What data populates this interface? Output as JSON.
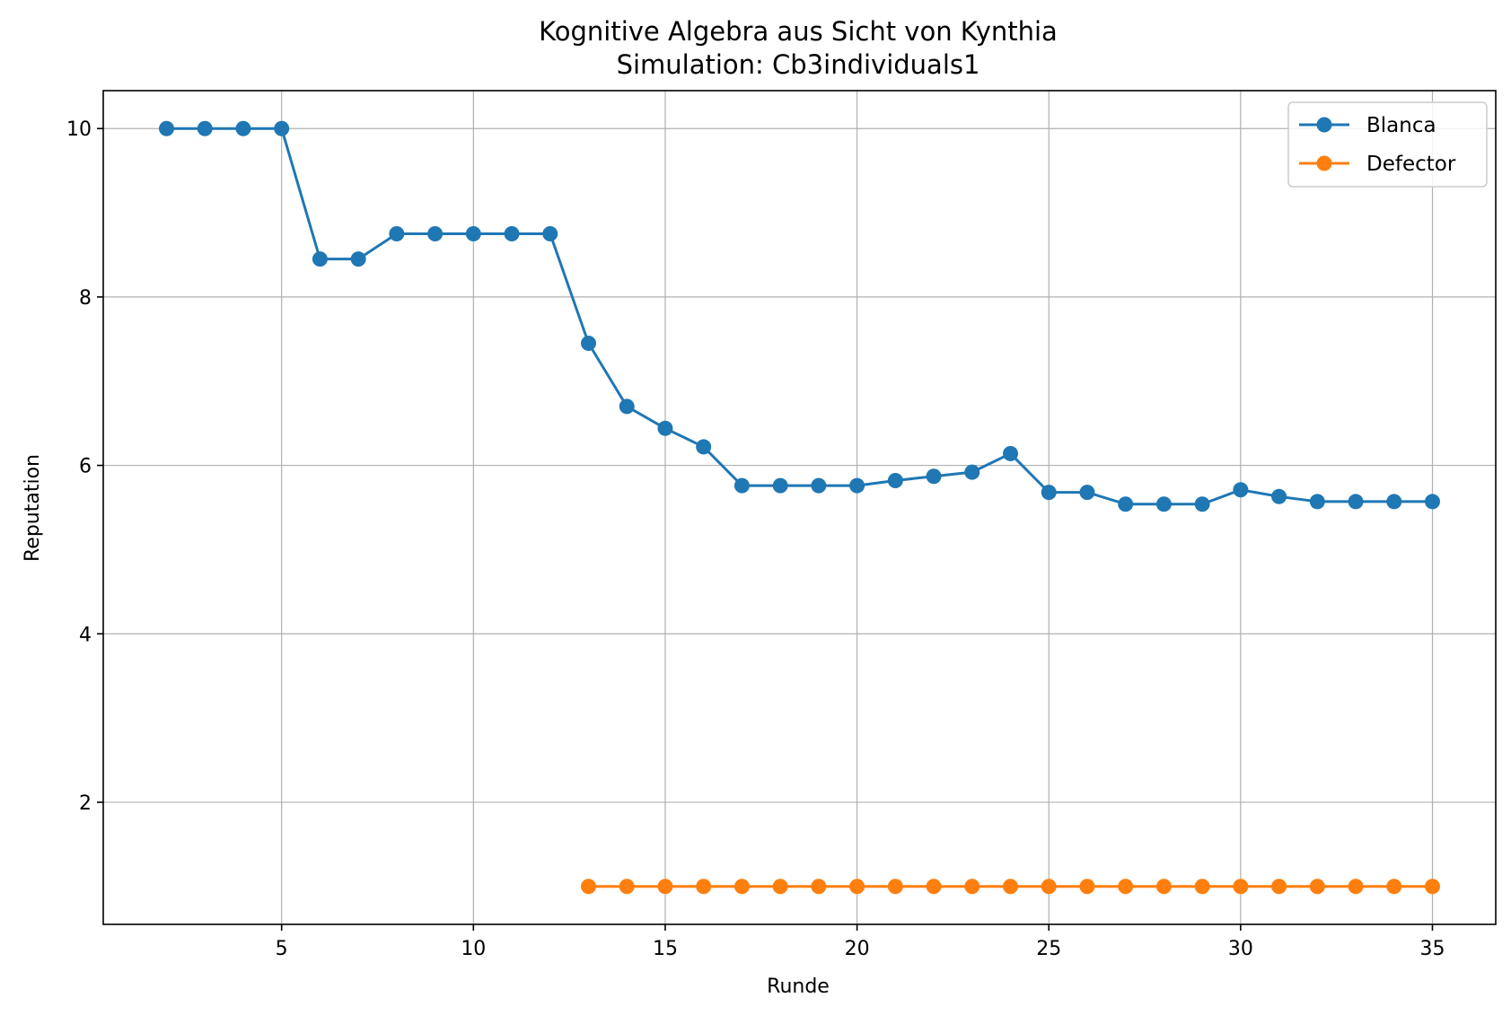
{
  "chart_data": {
    "type": "line",
    "title": "Kognitive Algebra aus Sicht von Kynthia",
    "subtitle": "Simulation: Cb3individuals1",
    "xlabel": "Runde",
    "ylabel": "Reputation",
    "xlim": [
      0.35,
      36.65
    ],
    "ylim": [
      0.55,
      10.45
    ],
    "xticks": [
      5,
      10,
      15,
      20,
      25,
      30,
      35
    ],
    "yticks": [
      2,
      4,
      6,
      8,
      10
    ],
    "grid": true,
    "legend_position": "top-right",
    "series": [
      {
        "name": "Blanca",
        "color": "#1f77b4",
        "x": [
          2,
          3,
          4,
          5,
          6,
          7,
          8,
          9,
          10,
          11,
          12,
          13,
          14,
          15,
          16,
          17,
          18,
          19,
          20,
          21,
          22,
          23,
          24,
          25,
          26,
          27,
          28,
          29,
          30,
          31,
          32,
          33,
          34,
          35
        ],
        "y": [
          10,
          10,
          10,
          10,
          8.45,
          8.45,
          8.75,
          8.75,
          8.75,
          8.75,
          8.75,
          7.45,
          6.7,
          6.44,
          6.22,
          5.76,
          5.76,
          5.76,
          5.76,
          5.82,
          5.87,
          5.92,
          6.14,
          5.68,
          5.68,
          5.54,
          5.54,
          5.54,
          5.71,
          5.63,
          5.57,
          5.57,
          5.57,
          5.57
        ]
      },
      {
        "name": "Defector",
        "color": "#ff7f0e",
        "x": [
          13,
          14,
          15,
          16,
          17,
          18,
          19,
          20,
          21,
          22,
          23,
          24,
          25,
          26,
          27,
          28,
          29,
          30,
          31,
          32,
          33,
          34,
          35
        ],
        "y": [
          1,
          1,
          1,
          1,
          1,
          1,
          1,
          1,
          1,
          1,
          1,
          1,
          1,
          1,
          1,
          1,
          1,
          1,
          1,
          1,
          1,
          1,
          1
        ]
      }
    ]
  }
}
